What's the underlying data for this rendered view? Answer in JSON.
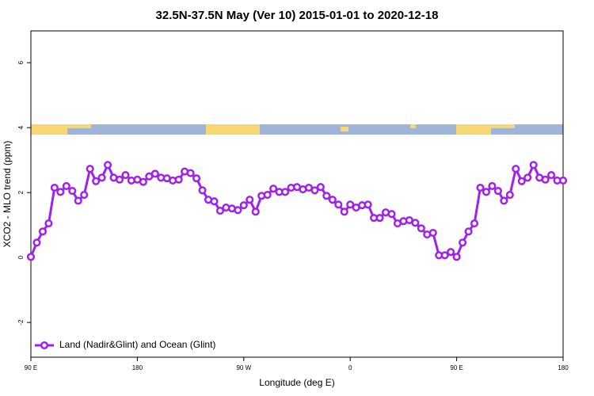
{
  "chart_data": {
    "type": "line",
    "title": "32.5N-37.5N May (Ver 10)   2015-01-01 to 2020-12-18",
    "x_label": "Longitude (deg E)",
    "y_label": "XCO2 - MLO trend (ppm)",
    "xlim": [
      90,
      540
    ],
    "xticks": [
      {
        "value": 90,
        "label": "90 E"
      },
      180,
      {
        "value": 270,
        "label": "90 W"
      },
      {
        "value": 360,
        "label": "0"
      },
      {
        "value": 450,
        "label": "90 E"
      },
      {
        "value": 540,
        "label": "180"
      }
    ],
    "ylim": [
      -3.07,
      6.98
    ],
    "yticks": [
      -2,
      0,
      2,
      4,
      6
    ],
    "legend": "bottom-left",
    "x": [
      90,
      95,
      100,
      105,
      110,
      115,
      120,
      125,
      130,
      135,
      140,
      145,
      150,
      155,
      160,
      165,
      170,
      175,
      180,
      185,
      190,
      195,
      200,
      205,
      210,
      215,
      220,
      225,
      230,
      235,
      240,
      245,
      250,
      255,
      260,
      265,
      270,
      275,
      280,
      285,
      290,
      295,
      300,
      305,
      310,
      315,
      320,
      325,
      330,
      335,
      340,
      345,
      350,
      355,
      360,
      365,
      370,
      375,
      380,
      385,
      390,
      395,
      400,
      405,
      410,
      415,
      420,
      425,
      430,
      435,
      440,
      445,
      450,
      455,
      460,
      465,
      470,
      475,
      480,
      485,
      490,
      495,
      500,
      505,
      510,
      515,
      520,
      525,
      530,
      535,
      540
    ],
    "series": [
      {
        "name": "Land (Nadir&Glint) and Ocean (Glint)",
        "color": "#a020f0",
        "values": [
          0.02,
          0.46,
          0.8,
          1.05,
          2.15,
          2.02,
          2.2,
          2.05,
          1.75,
          1.93,
          2.73,
          2.35,
          2.46,
          2.85,
          2.46,
          2.4,
          2.54,
          2.37,
          2.4,
          2.33,
          2.5,
          2.58,
          2.46,
          2.44,
          2.37,
          2.4,
          2.65,
          2.6,
          2.44,
          2.07,
          1.78,
          1.73,
          1.44,
          1.54,
          1.51,
          1.46,
          1.61,
          1.78,
          1.41,
          1.9,
          1.93,
          2.12,
          2.02,
          2.02,
          2.15,
          2.17,
          2.1,
          2.15,
          2.07,
          2.17,
          1.9,
          1.78,
          1.63,
          1.41,
          1.63,
          1.54,
          1.61,
          1.63,
          1.22,
          1.22,
          1.39,
          1.34,
          1.05,
          1.12,
          1.15,
          1.07,
          0.9,
          0.71,
          0.76,
          0.07,
          0.07,
          0.17,
          0.02,
          0.46,
          0.8,
          1.05,
          2.15,
          2.02,
          2.2,
          2.05,
          1.75,
          1.93,
          2.73,
          2.35,
          2.46,
          2.85,
          2.46,
          2.4,
          2.54,
          2.37,
          2.37
        ]
      }
    ]
  }
}
